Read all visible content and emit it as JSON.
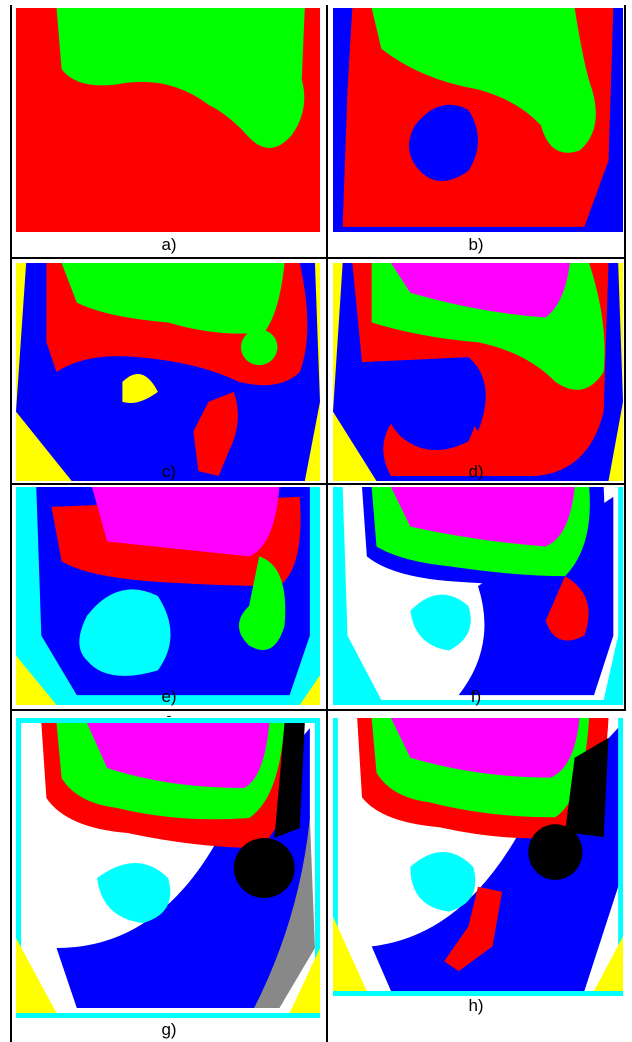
{
  "panels": [
    {
      "label": "a)"
    },
    {
      "label": "b)"
    },
    {
      "label": "c)"
    },
    {
      "label": "d)"
    },
    {
      "label": "e)"
    },
    {
      "label": "f)"
    },
    {
      "label": "g)"
    },
    {
      "label": "h)"
    }
  ],
  "mark": "-"
}
